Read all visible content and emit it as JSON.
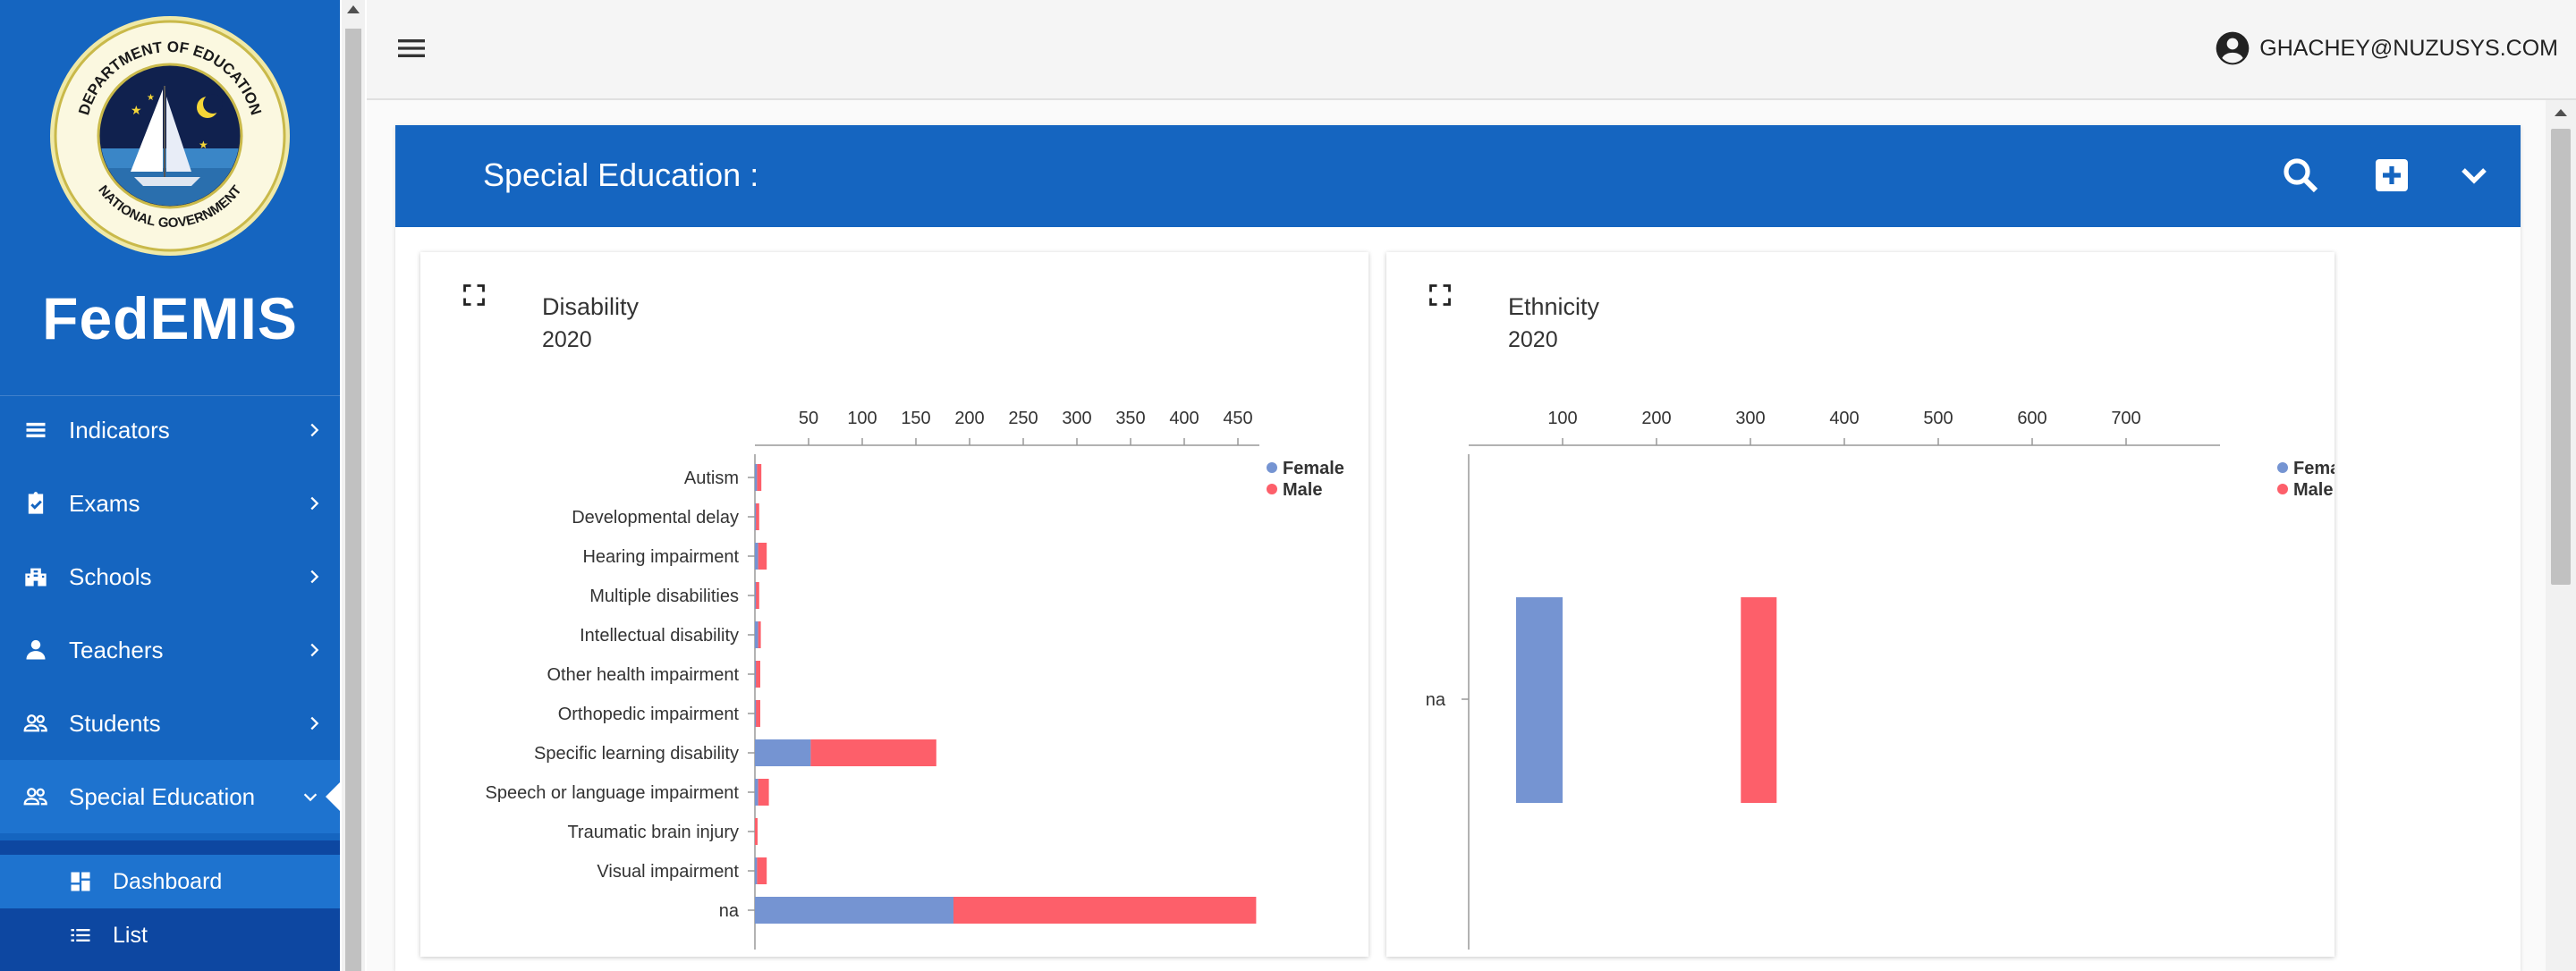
{
  "app": {
    "brand": "FedEMIS"
  },
  "logo": {
    "name": "department-of-education-seal",
    "text_top": "DEPARTMENT OF EDUCATION",
    "text_bottom": "NATIONAL GOVERNMENT"
  },
  "header": {
    "user_email": "GHACHEY@NUZUSYS.COM"
  },
  "sidebar": {
    "items": [
      {
        "label": "Indicators",
        "icon": "list-icon"
      },
      {
        "label": "Exams",
        "icon": "clipboard-check-icon"
      },
      {
        "label": "Schools",
        "icon": "building-icon"
      },
      {
        "label": "Teachers",
        "icon": "person-icon"
      },
      {
        "label": "Students",
        "icon": "people-icon"
      },
      {
        "label": "Special Education",
        "icon": "people-icon",
        "expanded": true
      }
    ],
    "sub_items": [
      {
        "label": "Dashboard",
        "icon": "dashboard-icon",
        "active": true
      },
      {
        "label": "List",
        "icon": "list-icon"
      }
    ]
  },
  "panel": {
    "title": "Special Education :"
  },
  "colors": {
    "female": "#7594d2",
    "male": "#fd5f6a",
    "brand": "#1565c0"
  },
  "chart_data": [
    {
      "type": "bar",
      "orientation": "horizontal",
      "stacked": true,
      "title": "Disability",
      "subtitle": "2020",
      "categories": [
        "Autism",
        "Developmental delay",
        "Hearing impairment",
        "Multiple disabilities",
        "Intellectual disability",
        "Other health impairment",
        "Orthopedic impairment",
        "Specific learning disability",
        "Speech or language impairment",
        "Traumatic brain injury",
        "Visual impairment",
        "na"
      ],
      "series": [
        {
          "name": "Female",
          "values": [
            2,
            1,
            3,
            1,
            3,
            1,
            1,
            52,
            3,
            0,
            2,
            185
          ]
        },
        {
          "name": "Male",
          "values": [
            4,
            3,
            8,
            3,
            2,
            4,
            4,
            117,
            10,
            1,
            9,
            282
          ]
        }
      ],
      "xlim": [
        0,
        470
      ],
      "xticks": [
        50,
        100,
        150,
        200,
        250,
        300,
        350,
        400,
        450
      ],
      "legend": "top-right"
    },
    {
      "type": "bar",
      "orientation": "horizontal",
      "stacked": false,
      "title": "Ethnicity",
      "subtitle": "2020",
      "categories": [
        "na"
      ],
      "series": [
        {
          "name": "Female",
          "values": [
            100
          ]
        },
        {
          "name": "Male",
          "values": [
            326
          ]
        }
      ],
      "xlim": [
        0,
        800
      ],
      "xticks": [
        100,
        200,
        300,
        400,
        500,
        600,
        700
      ],
      "legend": "top-right"
    }
  ]
}
